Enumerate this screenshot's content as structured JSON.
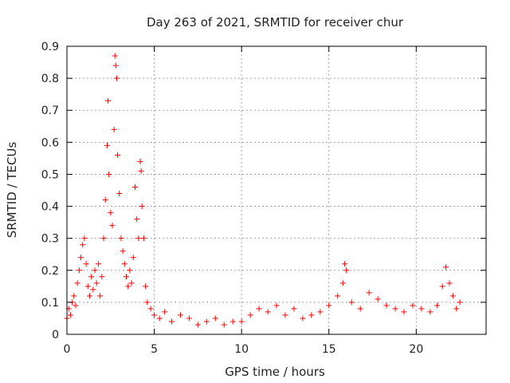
{
  "chart_data": {
    "type": "scatter",
    "title": "Day 263 of 2021, SRMTID for receiver chur",
    "xlabel": "GPS time / hours",
    "ylabel": "SRMTID / TECUs",
    "xlim": [
      0,
      24
    ],
    "ylim": [
      0,
      0.9
    ],
    "x_ticks": [
      0,
      5,
      10,
      15,
      20
    ],
    "x_tick_labels": [
      "0",
      "5",
      "10",
      "15",
      "20"
    ],
    "y_ticks": [
      0,
      0.1,
      0.2,
      0.3,
      0.4,
      0.5,
      0.6,
      0.7,
      0.8,
      0.9
    ],
    "y_tick_labels": [
      "0",
      "0.1",
      "0.2",
      "0.3",
      "0.4",
      "0.5",
      "0.6",
      "0.7",
      "0.8",
      "0.9"
    ],
    "grid": true,
    "marker": "+",
    "color": "#ff0000",
    "series": [
      {
        "name": "SRMTID",
        "points": [
          [
            0.0,
            0.05
          ],
          [
            0.1,
            0.08
          ],
          [
            0.2,
            0.06
          ],
          [
            0.3,
            0.1
          ],
          [
            0.4,
            0.12
          ],
          [
            0.5,
            0.09
          ],
          [
            0.6,
            0.16
          ],
          [
            0.7,
            0.2
          ],
          [
            0.8,
            0.24
          ],
          [
            0.9,
            0.28
          ],
          [
            1.0,
            0.3
          ],
          [
            1.1,
            0.22
          ],
          [
            1.2,
            0.15
          ],
          [
            1.3,
            0.12
          ],
          [
            1.4,
            0.18
          ],
          [
            1.5,
            0.14
          ],
          [
            1.6,
            0.2
          ],
          [
            1.7,
            0.16
          ],
          [
            1.8,
            0.22
          ],
          [
            1.9,
            0.12
          ],
          [
            2.0,
            0.18
          ],
          [
            2.1,
            0.3
          ],
          [
            2.2,
            0.42
          ],
          [
            2.3,
            0.59
          ],
          [
            2.35,
            0.73
          ],
          [
            2.4,
            0.5
          ],
          [
            2.5,
            0.38
          ],
          [
            2.6,
            0.34
          ],
          [
            2.7,
            0.64
          ],
          [
            2.75,
            0.87
          ],
          [
            2.8,
            0.84
          ],
          [
            2.85,
            0.8
          ],
          [
            2.9,
            0.56
          ],
          [
            3.0,
            0.44
          ],
          [
            3.1,
            0.3
          ],
          [
            3.2,
            0.26
          ],
          [
            3.3,
            0.22
          ],
          [
            3.4,
            0.18
          ],
          [
            3.5,
            0.15
          ],
          [
            3.6,
            0.2
          ],
          [
            3.7,
            0.16
          ],
          [
            3.8,
            0.24
          ],
          [
            3.9,
            0.46
          ],
          [
            4.0,
            0.36
          ],
          [
            4.1,
            0.3
          ],
          [
            4.2,
            0.54
          ],
          [
            4.25,
            0.51
          ],
          [
            4.3,
            0.4
          ],
          [
            4.4,
            0.3
          ],
          [
            4.5,
            0.15
          ],
          [
            4.6,
            0.1
          ],
          [
            4.8,
            0.08
          ],
          [
            5.0,
            0.06
          ],
          [
            5.3,
            0.05
          ],
          [
            5.6,
            0.07
          ],
          [
            6.0,
            0.04
          ],
          [
            6.5,
            0.06
          ],
          [
            7.0,
            0.05
          ],
          [
            7.5,
            0.03
          ],
          [
            8.0,
            0.04
          ],
          [
            8.5,
            0.05
          ],
          [
            9.0,
            0.03
          ],
          [
            9.5,
            0.04
          ],
          [
            10.0,
            0.04
          ],
          [
            10.5,
            0.06
          ],
          [
            11.0,
            0.08
          ],
          [
            11.5,
            0.07
          ],
          [
            12.0,
            0.09
          ],
          [
            12.5,
            0.06
          ],
          [
            13.0,
            0.08
          ],
          [
            13.5,
            0.05
          ],
          [
            14.0,
            0.06
          ],
          [
            14.5,
            0.07
          ],
          [
            15.0,
            0.09
          ],
          [
            15.5,
            0.12
          ],
          [
            15.8,
            0.16
          ],
          [
            15.9,
            0.22
          ],
          [
            16.0,
            0.2
          ],
          [
            16.3,
            0.1
          ],
          [
            16.8,
            0.08
          ],
          [
            17.3,
            0.13
          ],
          [
            17.8,
            0.11
          ],
          [
            18.3,
            0.09
          ],
          [
            18.8,
            0.08
          ],
          [
            19.3,
            0.07
          ],
          [
            19.8,
            0.09
          ],
          [
            20.3,
            0.08
          ],
          [
            20.8,
            0.07
          ],
          [
            21.2,
            0.09
          ],
          [
            21.5,
            0.15
          ],
          [
            21.7,
            0.21
          ],
          [
            21.9,
            0.16
          ],
          [
            22.1,
            0.12
          ],
          [
            22.3,
            0.08
          ],
          [
            22.5,
            0.1
          ]
        ]
      }
    ]
  }
}
